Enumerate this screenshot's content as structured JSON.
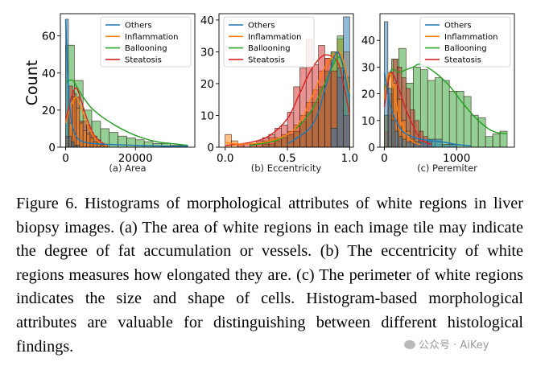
{
  "figure": {
    "shared_ylabel": "Count",
    "legend": [
      "Others",
      "Inflammation",
      "Ballooning",
      "Steatosis"
    ],
    "colors": {
      "Others": "#1f77b4",
      "Inflammation": "#ff7f0e",
      "Ballooning": "#2ca02c",
      "Steatosis": "#d62728"
    }
  },
  "chart_data": [
    {
      "type": "histogram",
      "caption": "(a) Area",
      "ylabel": "Count",
      "xlim": [
        -1500,
        37000
      ],
      "ylim": [
        0,
        72
      ],
      "xticks": [
        0,
        20000
      ],
      "xticklabels": [
        "0",
        "20000"
      ],
      "yticks": [
        0,
        20,
        40,
        60
      ],
      "legend_position": "top-right",
      "series": [
        {
          "name": "Ballooning",
          "edges": [
            0,
            2500,
            5000,
            7500,
            10000,
            12500,
            15000,
            17500,
            20000,
            22500,
            25000,
            27500,
            30000,
            32500,
            35000
          ],
          "counts": [
            55,
            36,
            20,
            14,
            10,
            8,
            6,
            5,
            4,
            3,
            2,
            2,
            1,
            1
          ]
        },
        {
          "name": "Steatosis",
          "edges": [
            0,
            1000,
            2000,
            3000,
            4000,
            5000,
            6000,
            7000,
            8000,
            9000,
            10000,
            11000,
            12000
          ],
          "counts": [
            6,
            33,
            29,
            27,
            14,
            14,
            12,
            8,
            6,
            4,
            2,
            1
          ]
        },
        {
          "name": "Inflammation",
          "edges": [
            0,
            1000,
            2000,
            3000,
            4000,
            5000,
            6000,
            7000,
            8000,
            9000,
            10000,
            11000,
            12000
          ],
          "counts": [
            5,
            13,
            27,
            21,
            13,
            9,
            7,
            5,
            3,
            2,
            1,
            1
          ]
        },
        {
          "name": "Others",
          "edges": [
            0,
            800,
            1600,
            2400,
            3200,
            4000
          ],
          "counts": [
            69,
            6,
            3,
            1,
            1
          ]
        }
      ],
      "curves": [
        {
          "name": "Ballooning",
          "x": [
            0,
            2000,
            4000,
            7000,
            10000,
            14000,
            18000,
            22000,
            26000,
            30000,
            35000
          ],
          "y": [
            35,
            36,
            30,
            22,
            17,
            12,
            8,
            5,
            3,
            2,
            1
          ]
        },
        {
          "name": "Steatosis",
          "x": [
            0,
            1500,
            3000,
            4500,
            6000,
            8000,
            10000,
            12000
          ],
          "y": [
            14,
            26,
            32,
            25,
            16,
            7,
            3,
            1
          ]
        },
        {
          "name": "Inflammation",
          "x": [
            0,
            1500,
            3000,
            4500,
            6000,
            8000,
            10000,
            12000
          ],
          "y": [
            13,
            22,
            27,
            21,
            13,
            6,
            2,
            1
          ]
        },
        {
          "name": "Others",
          "x": [
            0,
            600,
            1500,
            3000,
            5000,
            8000,
            12000,
            20000,
            30000,
            35000
          ],
          "y": [
            69,
            40,
            16,
            6,
            3,
            2,
            1.5,
            1,
            0.5,
            0.5
          ]
        }
      ]
    },
    {
      "type": "histogram",
      "caption": "(b) Eccentricity",
      "xlim": [
        -0.05,
        1.03
      ],
      "ylim": [
        0,
        42
      ],
      "xticks": [
        0.0,
        0.5,
        1.0
      ],
      "xticklabels": [
        "0.0",
        "0.5",
        "1.0"
      ],
      "yticks": [
        0,
        10,
        20,
        30,
        40
      ],
      "legend_position": "top-left",
      "series": [
        {
          "name": "Inflammation",
          "edges": [
            0,
            0.05,
            0.1,
            0.15,
            0.2,
            0.25,
            0.3,
            0.35,
            0.4,
            0.45,
            0.5,
            0.55,
            0.6,
            0.65,
            0.7,
            0.75,
            0.8,
            0.85,
            0.9,
            0.95,
            1.0
          ],
          "counts": [
            4,
            2,
            1,
            0,
            1,
            1,
            2,
            3,
            3,
            4,
            5,
            7,
            10,
            14,
            18,
            24,
            28,
            30,
            34,
            30
          ]
        },
        {
          "name": "Ballooning",
          "edges": [
            0.3,
            0.35,
            0.4,
            0.45,
            0.5,
            0.55,
            0.6,
            0.65,
            0.7,
            0.75,
            0.8,
            0.85,
            0.9,
            0.95,
            1.0
          ],
          "counts": [
            1,
            1,
            2,
            3,
            4,
            5,
            8,
            11,
            14,
            19,
            24,
            30,
            35,
            22
          ]
        },
        {
          "name": "Steatosis",
          "edges": [
            0.1,
            0.15,
            0.2,
            0.25,
            0.3,
            0.35,
            0.4,
            0.45,
            0.5,
            0.55,
            0.6,
            0.65,
            0.7,
            0.75,
            0.8,
            0.85,
            0.9,
            0.95,
            1.0
          ],
          "counts": [
            1,
            1,
            1,
            2,
            3,
            4,
            6,
            7,
            11,
            19,
            25,
            34,
            26,
            32,
            28,
            24,
            22,
            10
          ]
        },
        {
          "name": "Others",
          "edges": [
            0.85,
            0.9,
            0.95,
            1.0
          ],
          "counts": [
            6,
            25,
            41
          ]
        }
      ],
      "curves": [
        {
          "name": "Steatosis",
          "x": [
            0.0,
            0.2,
            0.35,
            0.5,
            0.6,
            0.7,
            0.8,
            0.9,
            0.95,
            1.0
          ],
          "y": [
            0.5,
            1.5,
            3.5,
            9,
            17,
            25,
            29,
            27,
            20,
            10
          ]
        },
        {
          "name": "Ballooning",
          "x": [
            0.2,
            0.4,
            0.5,
            0.6,
            0.7,
            0.8,
            0.9,
            0.95,
            1.0
          ],
          "y": [
            0.5,
            2,
            4,
            7,
            12,
            20,
            28,
            26,
            16
          ]
        },
        {
          "name": "Inflammation",
          "x": [
            0.0,
            0.1,
            0.3,
            0.5,
            0.6,
            0.7,
            0.8,
            0.9,
            0.95,
            1.0
          ],
          "y": [
            1.5,
            1,
            1.5,
            4,
            8,
            16,
            25,
            30,
            27,
            17
          ]
        },
        {
          "name": "Others",
          "x": [
            0.5,
            0.7,
            0.8,
            0.85,
            0.9,
            0.95,
            1.0
          ],
          "y": [
            1,
            7,
            18,
            25,
            30,
            25,
            15
          ]
        }
      ]
    },
    {
      "type": "histogram",
      "caption": "(c) Peremiter",
      "xlim": [
        -60,
        1800
      ],
      "ylim": [
        0,
        50
      ],
      "xticks": [
        0,
        1000
      ],
      "xticklabels": [
        "0",
        "1000"
      ],
      "yticks": [
        0,
        10,
        20,
        30,
        40
      ],
      "legend_position": "top-right",
      "series": [
        {
          "name": "Ballooning",
          "edges": [
            0,
            100,
            200,
            300,
            400,
            500,
            600,
            700,
            800,
            900,
            1000,
            1100,
            1200,
            1300,
            1400,
            1500,
            1600,
            1700
          ],
          "counts": [
            12,
            33,
            37,
            24,
            30,
            29,
            25,
            26,
            25,
            21,
            21,
            19,
            12,
            11,
            4,
            5,
            6
          ]
        },
        {
          "name": "Steatosis",
          "edges": [
            0,
            60,
            120,
            180,
            240,
            300,
            360,
            420,
            480,
            540,
            600,
            660
          ],
          "counts": [
            6,
            20,
            33,
            30,
            26,
            22,
            14,
            10,
            6,
            4,
            2
          ]
        },
        {
          "name": "Inflammation",
          "edges": [
            0,
            60,
            120,
            180,
            240,
            300,
            360,
            420,
            480
          ],
          "counts": [
            12,
            28,
            24,
            18,
            10,
            6,
            3,
            1
          ]
        },
        {
          "name": "Others",
          "edges": [
            0,
            50,
            100,
            150,
            200,
            250,
            300,
            400,
            600,
            800,
            1000
          ],
          "counts": [
            47,
            22,
            10,
            6,
            4,
            3,
            2,
            2,
            3,
            1
          ]
        }
      ],
      "curves": [
        {
          "name": "Ballooning",
          "x": [
            0,
            100,
            200,
            300,
            400,
            500,
            700,
            900,
            1100,
            1300,
            1500,
            1700
          ],
          "y": [
            22,
            29,
            28,
            29,
            30,
            31,
            28,
            23,
            16,
            10,
            6,
            5
          ]
        },
        {
          "name": "Steatosis",
          "x": [
            0,
            50,
            100,
            200,
            300,
            400,
            500,
            650
          ],
          "y": [
            15,
            24,
            28,
            22,
            14,
            8,
            3,
            1
          ]
        },
        {
          "name": "Inflammation",
          "x": [
            0,
            50,
            100,
            150,
            200,
            300,
            400,
            500
          ],
          "y": [
            18,
            27,
            26,
            19,
            12,
            5,
            2,
            1
          ]
        },
        {
          "name": "Others",
          "x": [
            0,
            50,
            100,
            200,
            300,
            500,
            800,
            1000,
            1200
          ],
          "y": [
            28,
            20,
            14,
            8,
            5,
            3,
            2,
            1,
            0.5
          ]
        }
      ]
    }
  ],
  "caption": "Figure 6. Histograms of morphological attributes of white regions in liver biopsy images. (a) The area of white regions in each image tile may indicate the degree of fat accumulation or vessels. (b) The eccentricity of white regions measures how elongated they are. (c) The perimeter of white regions indicates the size and shape of cells. Histogram-based morphological attributes are valuable for distinguishing between different histological findings.",
  "watermark": "公众号 · AiKey"
}
